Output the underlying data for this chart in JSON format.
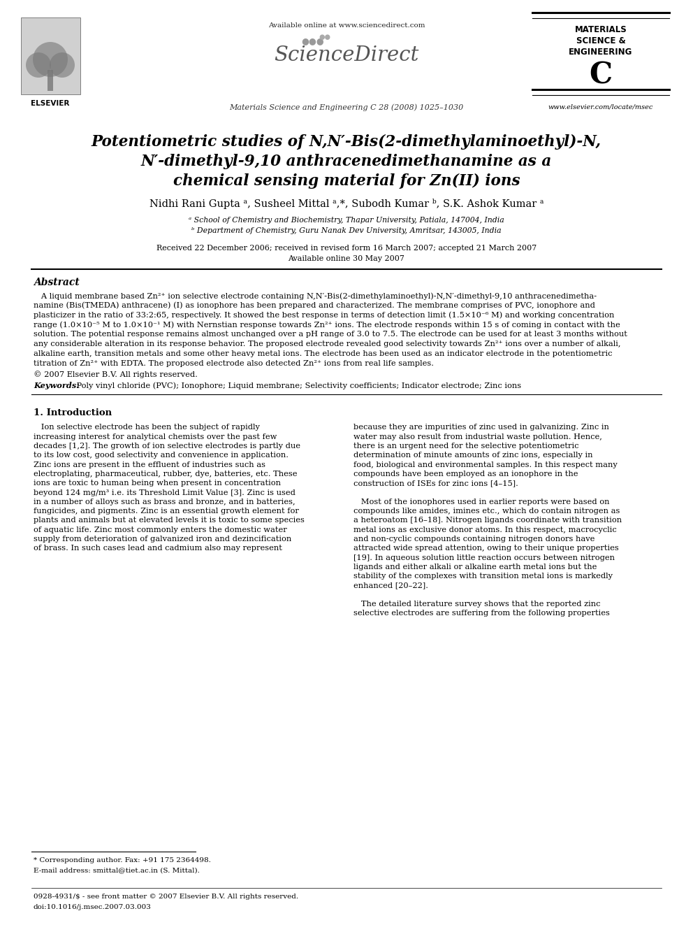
{
  "bg_color": "#ffffff",
  "header": {
    "available_online": "Available online at www.sciencedirect.com",
    "journal_line": "Materials Science and Engineering C 28 (2008) 1025–1030",
    "journal_name_lines": [
      "MATERIALS",
      "SCIENCE &",
      "ENGINEERING"
    ],
    "journal_letter": "C",
    "website": "www.elsevier.com/locate/msec"
  },
  "title_lines": [
    "Potentiometric studies of N,N′-Bis(2-dimethylaminoethyl)-N,",
    "N′-dimethyl-9,10 anthracenedimethanamine as a",
    "chemical sensing material for Zn(II) ions"
  ],
  "authors": "Nidhi Rani Gupta ᵃ, Susheel Mittal ᵃ,*, Subodh Kumar ᵇ, S.K. Ashok Kumar ᵃ",
  "affiliations": [
    "ᵃ School of Chemistry and Biochemistry, Thapar University, Patiala, 147004, India",
    "ᵇ Department of Chemistry, Guru Nanak Dev University, Amritsar, 143005, India"
  ],
  "received": "Received 22 December 2006; received in revised form 16 March 2007; accepted 21 March 2007",
  "available": "Available online 30 May 2007",
  "abstract_title": "Abstract",
  "abstract_indent": "   A liquid membrane based Zn²⁺ ion selective electrode containing N,N′-Bis(2-dimethylaminoethyl)-N,N′-dimethyl-9,10 anthracenedimetha-\nnamine (Bis(TMEDA) anthracene) (I) as ionophore has been prepared and characterized. The membrane comprises of PVC, ionophore and\nplasticizer in the ratio of 33:2:65, respectively. It showed the best response in terms of detection limit (1.5×10⁻⁶ M) and working concentration\nrange (1.0×10⁻⁵ M to 1.0×10⁻¹ M) with Nernstian response towards Zn²⁺ ions. The electrode responds within 15 s of coming in contact with the\nsolution. The potential response remains almost unchanged over a pH range of 3.0 to 7.5. The electrode can be used for at least 3 months without\nany considerable alteration in its response behavior. The proposed electrode revealed good selectivity towards Zn²⁺ ions over a number of alkali,\nalkaline earth, transition metals and some other heavy metal ions. The electrode has been used as an indicator electrode in the potentiometric\ntitration of Zn²⁺ with EDTA. The proposed electrode also detected Zn²⁺ ions from real life samples.",
  "copyright": "© 2007 Elsevier B.V. All rights reserved.",
  "keywords_label": "Keywords:",
  "keywords": " Poly vinyl chloride (PVC); Ionophore; Liquid membrane; Selectivity coefficients; Indicator electrode; Zinc ions",
  "section1_title": "1. Introduction",
  "col1_lines": [
    "   Ion selective electrode has been the subject of rapidly",
    "increasing interest for analytical chemists over the past few",
    "decades [1,2]. The growth of ion selective electrodes is partly due",
    "to its low cost, good selectivity and convenience in application.",
    "Zinc ions are present in the effluent of industries such as",
    "electroplating, pharmaceutical, rubber, dye, batteries, etc. These",
    "ions are toxic to human being when present in concentration",
    "beyond 124 mg/m³ i.e. its Threshold Limit Value [3]. Zinc is used",
    "in a number of alloys such as brass and bronze, and in batteries,",
    "fungicides, and pigments. Zinc is an essential growth element for",
    "plants and animals but at elevated levels it is toxic to some species",
    "of aquatic life. Zinc most commonly enters the domestic water",
    "supply from deterioration of galvanized iron and dezincification",
    "of brass. In such cases lead and cadmium also may represent"
  ],
  "col2_lines": [
    "because they are impurities of zinc used in galvanizing. Zinc in",
    "water may also result from industrial waste pollution. Hence,",
    "there is an urgent need for the selective potentiometric",
    "determination of minute amounts of zinc ions, especially in",
    "food, biological and environmental samples. In this respect many",
    "compounds have been employed as an ionophore in the",
    "construction of ISEs for zinc ions [4–15].",
    "",
    "   Most of the ionophores used in earlier reports were based on",
    "compounds like amides, imines etc., which do contain nitrogen as",
    "a heteroatom [16–18]. Nitrogen ligands coordinate with transition",
    "metal ions as exclusive donor atoms. In this respect, macrocyclic",
    "and non-cyclic compounds containing nitrogen donors have",
    "attracted wide spread attention, owing to their unique properties",
    "[19]. In aqueous solution little reaction occurs between nitrogen",
    "ligands and either alkali or alkaline earth metal ions but the",
    "stability of the complexes with transition metal ions is markedly",
    "enhanced [20–22].",
    "",
    "   The detailed literature survey shows that the reported zinc",
    "selective electrodes are suffering from the following properties"
  ],
  "footnote_star": "* Corresponding author. Fax: +91 175 2364498.",
  "footnote_email": "E-mail address: smittal@tiet.ac.in (S. Mittal).",
  "footer_left": "0928-4931/$ - see front matter © 2007 Elsevier B.V. All rights reserved.",
  "footer_doi": "doi:10.1016/j.msec.2007.03.003"
}
